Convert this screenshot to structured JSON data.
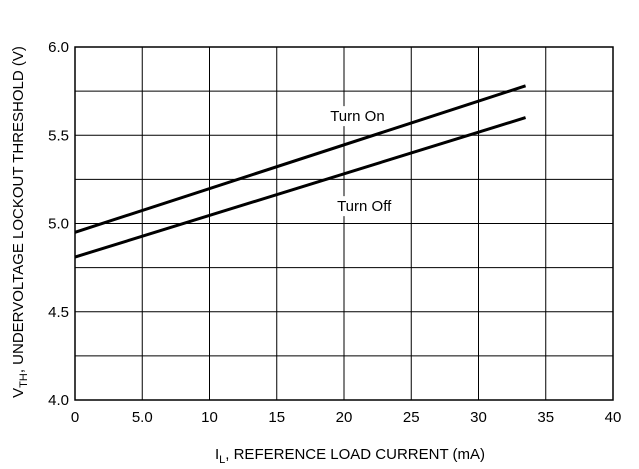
{
  "chart_data": {
    "type": "line",
    "title": "",
    "xlabel_main": "I",
    "xlabel_sub": "L",
    "xlabel_rest": ", REFERENCE LOAD CURRENT (mA)",
    "ylabel_main": "V",
    "ylabel_sub": "TH",
    "ylabel_rest": ", UNDERVOLTAGE LOCKOUT THRESHOLD (V)",
    "xlim": [
      0,
      40
    ],
    "ylim": [
      4.0,
      6.0
    ],
    "x_ticks": [
      0,
      5,
      10,
      15,
      20,
      25,
      30,
      35,
      40
    ],
    "x_tick_labels": [
      "0",
      "5.0",
      "10",
      "15",
      "20",
      "25",
      "30",
      "35",
      "40"
    ],
    "y_ticks": [
      4.0,
      4.5,
      5.0,
      5.5,
      6.0
    ],
    "y_tick_labels": [
      "4.0",
      "4.5",
      "5.0",
      "5.5",
      "6.0"
    ],
    "x_grid": [
      0,
      5,
      10,
      15,
      20,
      25,
      30,
      35,
      40
    ],
    "y_grid": [
      4.0,
      4.25,
      4.5,
      4.75,
      5.0,
      5.25,
      5.5,
      5.75,
      6.0
    ],
    "grid": true,
    "legend": "none",
    "series": [
      {
        "name": "Turn On",
        "x": [
          0,
          33.5
        ],
        "y": [
          4.95,
          5.78
        ]
      },
      {
        "name": "Turn Off",
        "x": [
          0,
          33.5
        ],
        "y": [
          4.81,
          5.6
        ]
      }
    ],
    "annotations": [
      {
        "text": "Turn On",
        "series": 0,
        "x": 21.0,
        "y": 5.58
      },
      {
        "text": "Turn Off",
        "series": 1,
        "x": 21.5,
        "y": 5.07
      }
    ]
  }
}
